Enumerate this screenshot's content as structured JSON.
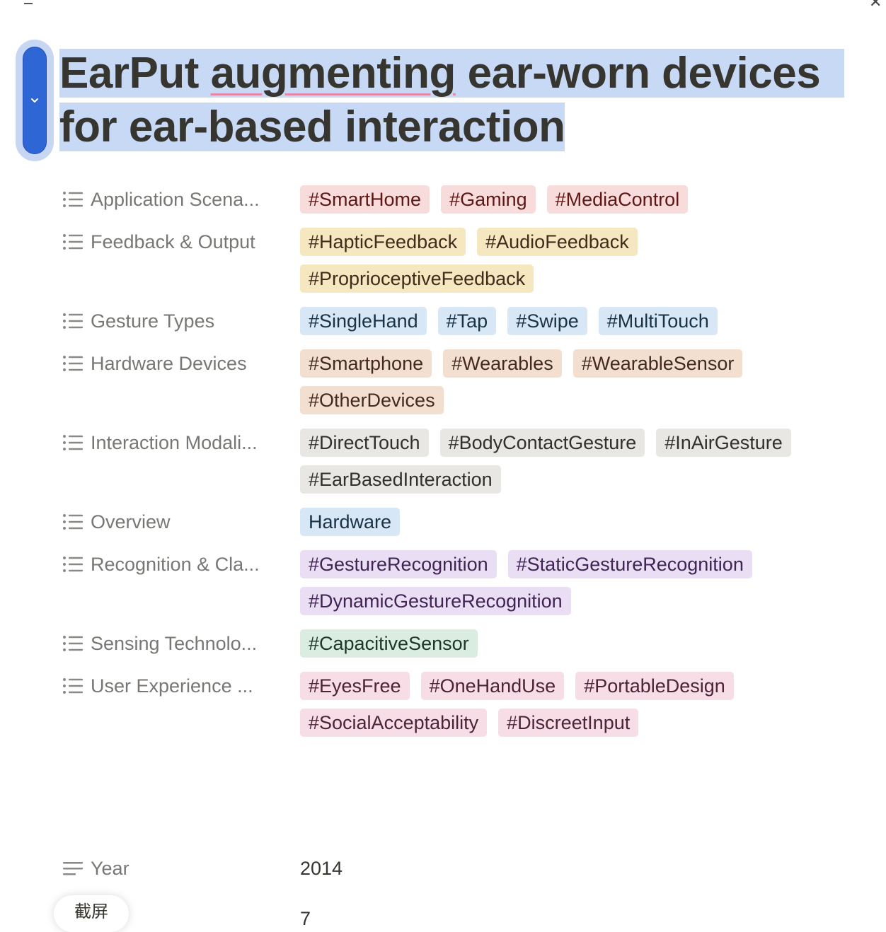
{
  "page": {
    "title_part1": "EarPut ",
    "title_spell": "augmenting",
    "title_part2": " ear-worn devices",
    "title_line2": "for ear-based interaction",
    "handle_icon": "chevron-down-icon"
  },
  "properties": [
    {
      "label": "Application Scena...",
      "icon": "list-icon",
      "tags": [
        {
          "text": "#SmartHome",
          "color": "red"
        },
        {
          "text": "#Gaming",
          "color": "red"
        },
        {
          "text": "#MediaControl",
          "color": "red"
        }
      ]
    },
    {
      "label": "Feedback & Output",
      "icon": "list-icon",
      "tags": [
        {
          "text": "#HapticFeedback",
          "color": "yellow"
        },
        {
          "text": "#AudioFeedback",
          "color": "yellow"
        },
        {
          "text": "#ProprioceptiveFeedback",
          "color": "yellow"
        }
      ]
    },
    {
      "label": "Gesture Types",
      "icon": "list-icon",
      "tags": [
        {
          "text": "#SingleHand",
          "color": "blue"
        },
        {
          "text": "#Tap",
          "color": "blue"
        },
        {
          "text": "#Swipe",
          "color": "blue"
        },
        {
          "text": "#MultiTouch",
          "color": "blue"
        }
      ]
    },
    {
      "label": "Hardware Devices",
      "icon": "list-icon",
      "tags": [
        {
          "text": "#Smartphone",
          "color": "brown"
        },
        {
          "text": "#Wearables",
          "color": "brown"
        },
        {
          "text": "#WearableSensor",
          "color": "brown"
        },
        {
          "text": "#OtherDevices",
          "color": "brown"
        }
      ]
    },
    {
      "label": "Interaction Modali...",
      "icon": "list-icon",
      "tags": [
        {
          "text": "#DirectTouch",
          "color": "gray"
        },
        {
          "text": "#BodyContactGesture",
          "color": "gray"
        },
        {
          "text": "#InAirGesture",
          "color": "gray"
        },
        {
          "text": "#EarBasedInteraction",
          "color": "gray"
        }
      ]
    },
    {
      "label": "Overview",
      "icon": "list-icon",
      "tags": [
        {
          "text": "Hardware",
          "color": "blue"
        }
      ]
    },
    {
      "label": "Recognition & Cla...",
      "icon": "list-icon",
      "tags": [
        {
          "text": "#GestureRecognition",
          "color": "purple"
        },
        {
          "text": "#StaticGestureRecognition",
          "color": "purple"
        },
        {
          "text": "#DynamicGestureRecognition",
          "color": "purple"
        }
      ]
    },
    {
      "label": "Sensing Technolo...",
      "icon": "list-icon",
      "tags": [
        {
          "text": "#CapacitiveSensor",
          "color": "green"
        }
      ]
    },
    {
      "label": "User Experience ...",
      "icon": "list-icon",
      "tags": [
        {
          "text": "#EyesFree",
          "color": "pink"
        },
        {
          "text": "#OneHandUse",
          "color": "pink"
        },
        {
          "text": "#PortableDesign",
          "color": "pink"
        },
        {
          "text": "#SocialAcceptability",
          "color": "pink"
        },
        {
          "text": "#DiscreetInput",
          "color": "pink"
        }
      ]
    }
  ],
  "year": {
    "label": "Year",
    "icon": "text-lines-icon",
    "value": "2014"
  },
  "screenshot_chip": {
    "label": "截屏"
  },
  "partial_value": "7"
}
